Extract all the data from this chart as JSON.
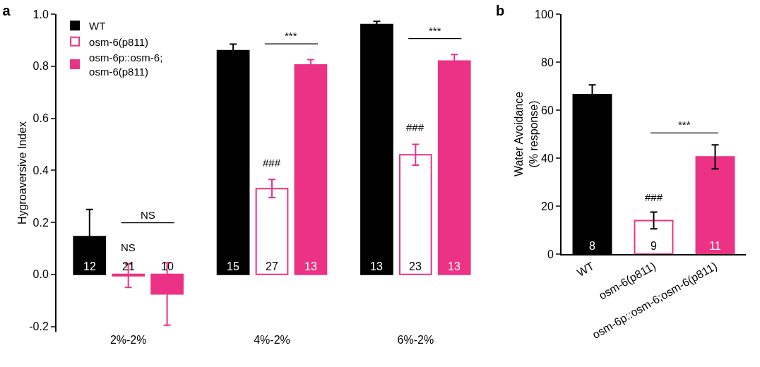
{
  "chart_data": [
    {
      "type": "bar",
      "title": "a",
      "ylabel": "Hygroaversive Index",
      "categories": [
        "2%-2%",
        "4%-2%",
        "6%-2%"
      ],
      "series": [
        {
          "name": "WT",
          "color": "#000000",
          "values": [
            0.145,
            0.86,
            0.96
          ],
          "errors": [
            0.105,
            0.025,
            0.012
          ]
        },
        {
          "name": "osm-6(p811)",
          "color": "#ec3285",
          "values": [
            -0.005,
            0.33,
            0.46
          ],
          "errors": [
            0.045,
            0.035,
            0.04
          ]
        },
        {
          "name": "osm-6p::osm-6;\nosm-6(p811)",
          "color": "#ec3285",
          "values": [
            -0.075,
            0.805,
            0.82
          ],
          "errors": [
            0.12,
            0.02,
            0.025
          ]
        }
      ],
      "ylim": [
        -0.22,
        1.0
      ],
      "yticks": [
        {
          "value": -0.2,
          "label": "-0.2"
        },
        {
          "value": 0,
          "label": "0.0"
        },
        {
          "value": 0.2,
          "label": "0.2"
        },
        {
          "value": 0.4,
          "label": "0.4"
        },
        {
          "value": 0.6,
          "label": "0.6"
        },
        {
          "value": 0.8,
          "label": "0.8"
        },
        {
          "value": 1,
          "label": "1.0"
        }
      ],
      "grid": false,
      "legend": "top left",
      "annotations": [
        "12",
        "21",
        "10",
        "15",
        "27",
        "13",
        "13",
        "23",
        "13",
        "NS",
        "NS",
        "###",
        "***",
        "###",
        "***"
      ]
    },
    {
      "type": "bar",
      "title": "b",
      "ylabel": "Water Avoidance\n(% response)",
      "categories": [
        "WT",
        "osm-6(p811)",
        "osm-6p::osm-6;osm-6(p811)"
      ],
      "values": [
        66.5,
        14,
        40.5
      ],
      "errors": [
        4,
        3.5,
        5
      ],
      "colors": [
        "#000000",
        "#ec3285",
        "#ec3285"
      ],
      "ylim": [
        0,
        100
      ],
      "yticks": [
        0,
        20,
        40,
        60,
        80,
        100
      ],
      "grid": false,
      "annotations": [
        "8",
        "9",
        "11",
        "###",
        "***"
      ]
    }
  ]
}
